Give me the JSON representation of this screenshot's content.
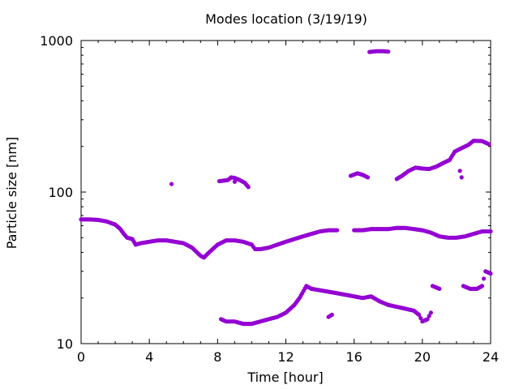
{
  "chart_data": {
    "type": "scatter",
    "title": "Modes location (3/19/19)",
    "xlabel": "Time [hour]",
    "ylabel": "Particle size [nm]",
    "xlim": [
      0,
      24
    ],
    "ylim": [
      10,
      1000
    ],
    "yscale": "log",
    "xticks": [
      0,
      4,
      8,
      12,
      16,
      20,
      24
    ],
    "xtick_labels": [
      "0",
      "4",
      "8",
      "12",
      "16",
      "20",
      "24"
    ],
    "yticks": [
      10,
      100,
      1000
    ],
    "ytick_labels": [
      "10",
      "100",
      "1000"
    ],
    "grid": false,
    "legend": "none",
    "marker_color": "#9400d3",
    "series": [
      {
        "points": [
          [
            0.0,
            66
          ],
          [
            0.5,
            66
          ],
          [
            1.0,
            65.5
          ],
          [
            1.5,
            64
          ],
          [
            2.0,
            61
          ],
          [
            2.3,
            57
          ],
          [
            2.5,
            53
          ],
          [
            2.7,
            50
          ],
          [
            3.0,
            49
          ],
          [
            3.2,
            45
          ],
          [
            3.5,
            46
          ],
          [
            4.0,
            47
          ],
          [
            4.5,
            48
          ],
          [
            5.0,
            48
          ],
          [
            5.5,
            47
          ],
          [
            6.0,
            46
          ],
          [
            6.5,
            43
          ],
          [
            7.0,
            38
          ],
          [
            7.2,
            37
          ],
          [
            7.5,
            40
          ],
          [
            8.0,
            45
          ],
          [
            8.5,
            48
          ],
          [
            9.0,
            48
          ],
          [
            9.5,
            47
          ],
          [
            10.0,
            45
          ],
          [
            10.2,
            42
          ],
          [
            10.5,
            42
          ],
          [
            11.0,
            43
          ],
          [
            11.5,
            45
          ],
          [
            12.0,
            47
          ],
          [
            12.5,
            49
          ],
          [
            13.0,
            51
          ],
          [
            13.5,
            53
          ],
          [
            14.0,
            55
          ],
          [
            14.5,
            56
          ],
          [
            15.0,
            56
          ],
          [
            16.0,
            56
          ],
          [
            16.5,
            56
          ],
          [
            17.0,
            57
          ],
          [
            17.5,
            57
          ],
          [
            18.0,
            57
          ],
          [
            18.5,
            58
          ],
          [
            19.0,
            58
          ],
          [
            19.5,
            57
          ],
          [
            20.0,
            56
          ],
          [
            20.5,
            54
          ],
          [
            21.0,
            51
          ],
          [
            21.5,
            50
          ],
          [
            22.0,
            50
          ],
          [
            22.5,
            51
          ],
          [
            23.0,
            53
          ],
          [
            23.5,
            55
          ],
          [
            24.0,
            55
          ]
        ]
      },
      {
        "points": [
          [
            8.2,
            14.5
          ],
          [
            8.5,
            14
          ],
          [
            9.0,
            14
          ],
          [
            9.5,
            13.5
          ],
          [
            10.0,
            13.5
          ],
          [
            10.5,
            14
          ],
          [
            11.0,
            14.5
          ],
          [
            11.5,
            15
          ],
          [
            12.0,
            16
          ],
          [
            12.5,
            18
          ],
          [
            12.8,
            20
          ],
          [
            13.2,
            24
          ],
          [
            13.5,
            23
          ],
          [
            14.0,
            22.5
          ],
          [
            14.5,
            22
          ],
          [
            15.0,
            21.5
          ],
          [
            15.5,
            21
          ],
          [
            16.0,
            20.5
          ],
          [
            16.5,
            20
          ],
          [
            17.0,
            20.5
          ],
          [
            17.5,
            19
          ],
          [
            18.0,
            18
          ],
          [
            18.5,
            17.5
          ],
          [
            19.0,
            17
          ],
          [
            19.5,
            16.5
          ],
          [
            19.8,
            15.5
          ],
          [
            20.0,
            14
          ],
          [
            20.3,
            14.5
          ],
          [
            20.5,
            16
          ],
          [
            14.5,
            15
          ],
          [
            14.7,
            15.5
          ],
          [
            20.6,
            24
          ],
          [
            20.8,
            23.5
          ],
          [
            21.0,
            23
          ],
          [
            22.4,
            24
          ],
          [
            22.8,
            23
          ],
          [
            23.2,
            23
          ],
          [
            23.5,
            24
          ],
          [
            23.7,
            30
          ],
          [
            24.0,
            29
          ]
        ]
      },
      {
        "points": [
          [
            5.3,
            113
          ],
          [
            8.1,
            118
          ],
          [
            8.6,
            120
          ],
          [
            8.8,
            125
          ],
          [
            9.0,
            124
          ],
          [
            9.3,
            120
          ],
          [
            9.6,
            115
          ],
          [
            9.8,
            108
          ],
          [
            9.0,
            117
          ],
          [
            15.8,
            128
          ],
          [
            16.2,
            133
          ],
          [
            16.5,
            130
          ],
          [
            16.8,
            125
          ],
          [
            18.5,
            122
          ],
          [
            18.8,
            128
          ],
          [
            19.2,
            138
          ],
          [
            19.6,
            145
          ],
          [
            20.0,
            143
          ],
          [
            20.4,
            142
          ],
          [
            20.8,
            147
          ],
          [
            21.2,
            155
          ],
          [
            21.6,
            163
          ],
          [
            21.9,
            185
          ],
          [
            22.3,
            195
          ],
          [
            22.7,
            205
          ],
          [
            23.0,
            218
          ],
          [
            23.5,
            217
          ],
          [
            23.9,
            207
          ],
          [
            22.2,
            138
          ],
          [
            22.3,
            125
          ]
        ]
      },
      {
        "points": [
          [
            16.9,
            840
          ],
          [
            17.3,
            850
          ],
          [
            17.7,
            850
          ],
          [
            18.0,
            845
          ]
        ]
      }
    ]
  }
}
